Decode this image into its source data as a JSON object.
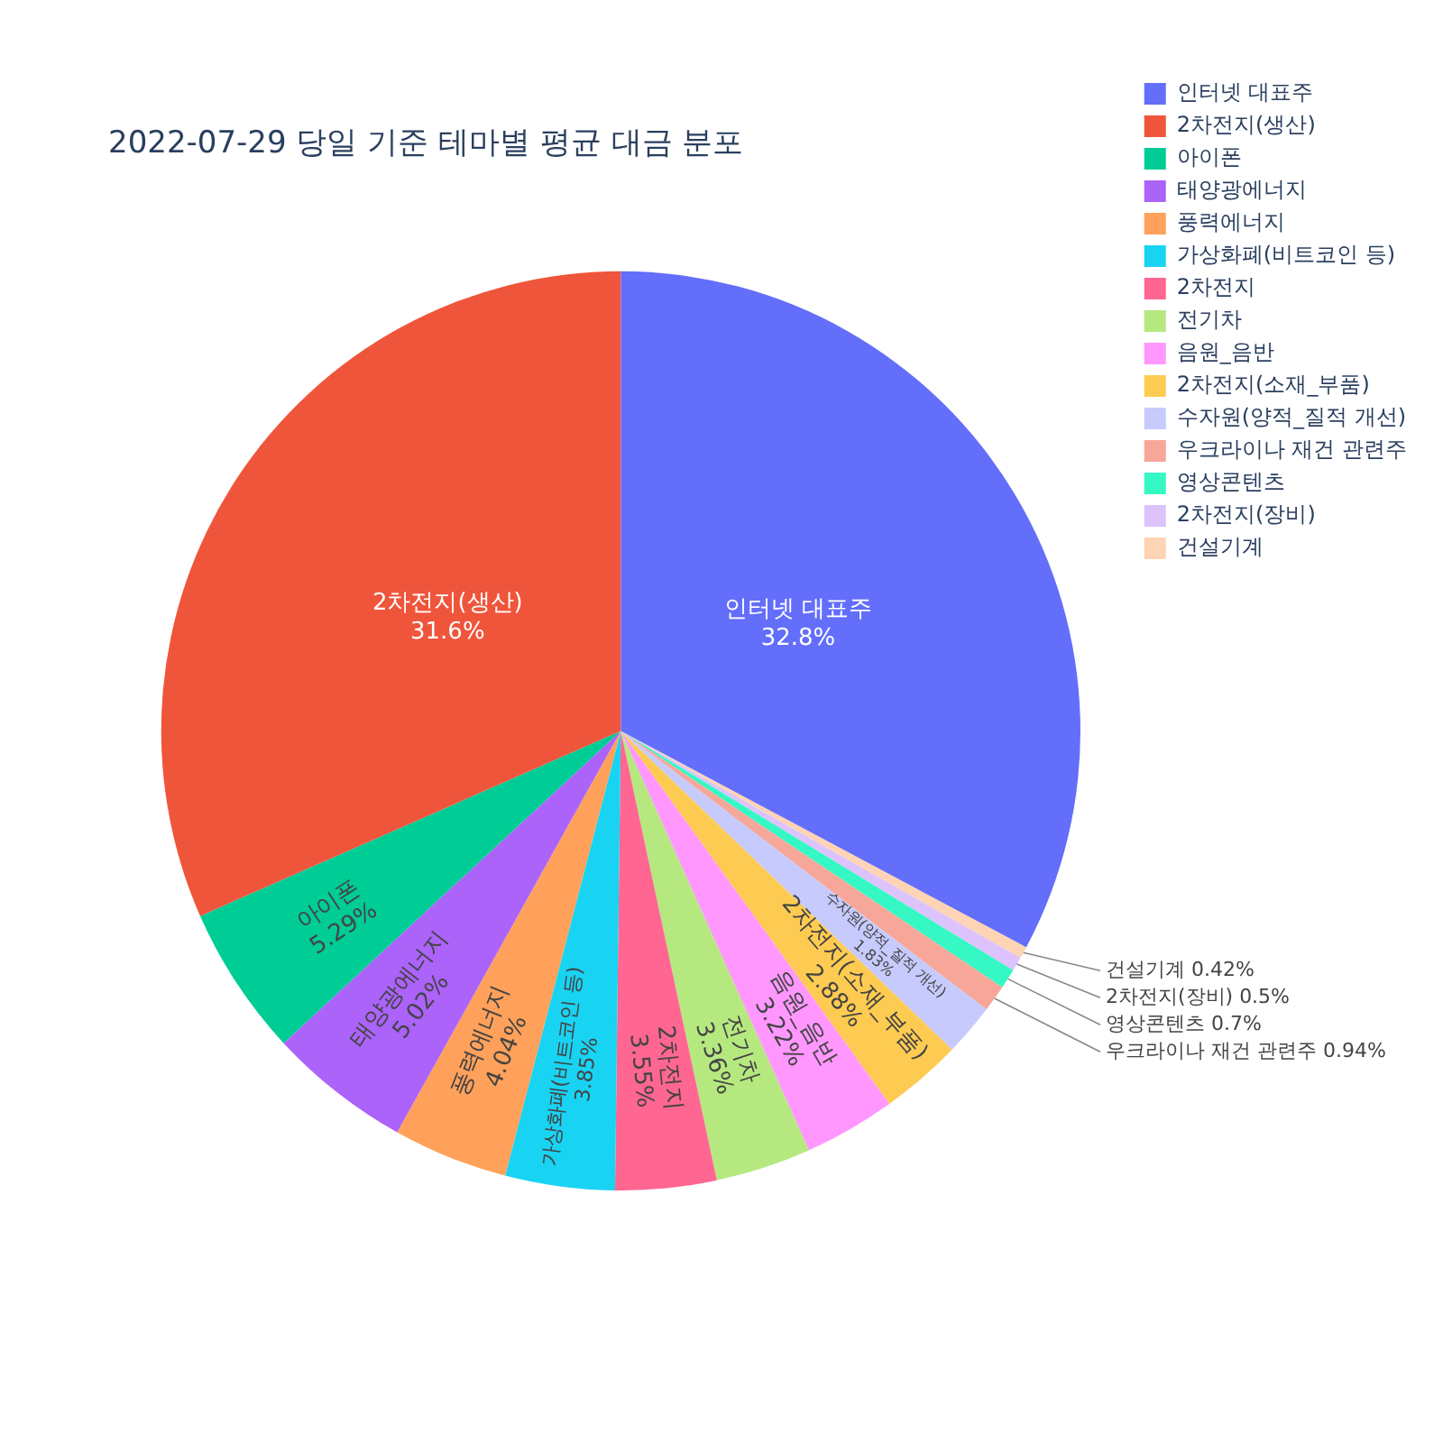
{
  "chart_data": {
    "type": "pie",
    "title": "2022-07-29 당일 기준 테마별 평균 대금 분포",
    "categories": [
      "인터넷 대표주",
      "2차전지(생산)",
      "아이폰",
      "태양광에너지",
      "풍력에너지",
      "가상화폐(비트코인 등)",
      "2차전지",
      "전기차",
      "음원_음반",
      "2차전지(소재_부품)",
      "수자원(양적_질적 개선)",
      "우크라이나 재건 관련주",
      "영상콘텐츠",
      "2차전지(장비)",
      "건설기계"
    ],
    "values": [
      32.8,
      31.6,
      5.29,
      5.02,
      4.04,
      3.85,
      3.55,
      3.36,
      3.22,
      2.88,
      1.83,
      0.94,
      0.7,
      0.5,
      0.42
    ],
    "value_labels": [
      "32.8%",
      "31.6%",
      "5.29%",
      "5.02%",
      "4.04%",
      "3.85%",
      "3.55%",
      "3.36%",
      "3.22%",
      "2.88%",
      "1.83%",
      "0.94%",
      "0.7%",
      "0.5%",
      "0.42%"
    ],
    "colors": [
      "#636efa",
      "#ef553b",
      "#00cc96",
      "#ab63fa",
      "#ffa15a",
      "#19d3f3",
      "#ff6692",
      "#b6e880",
      "#ff97ff",
      "#fecb52",
      "#c6cafd",
      "#f7a799",
      "#35f8c4",
      "#dcc3fb",
      "#fed4b4"
    ],
    "legend": "top right"
  }
}
